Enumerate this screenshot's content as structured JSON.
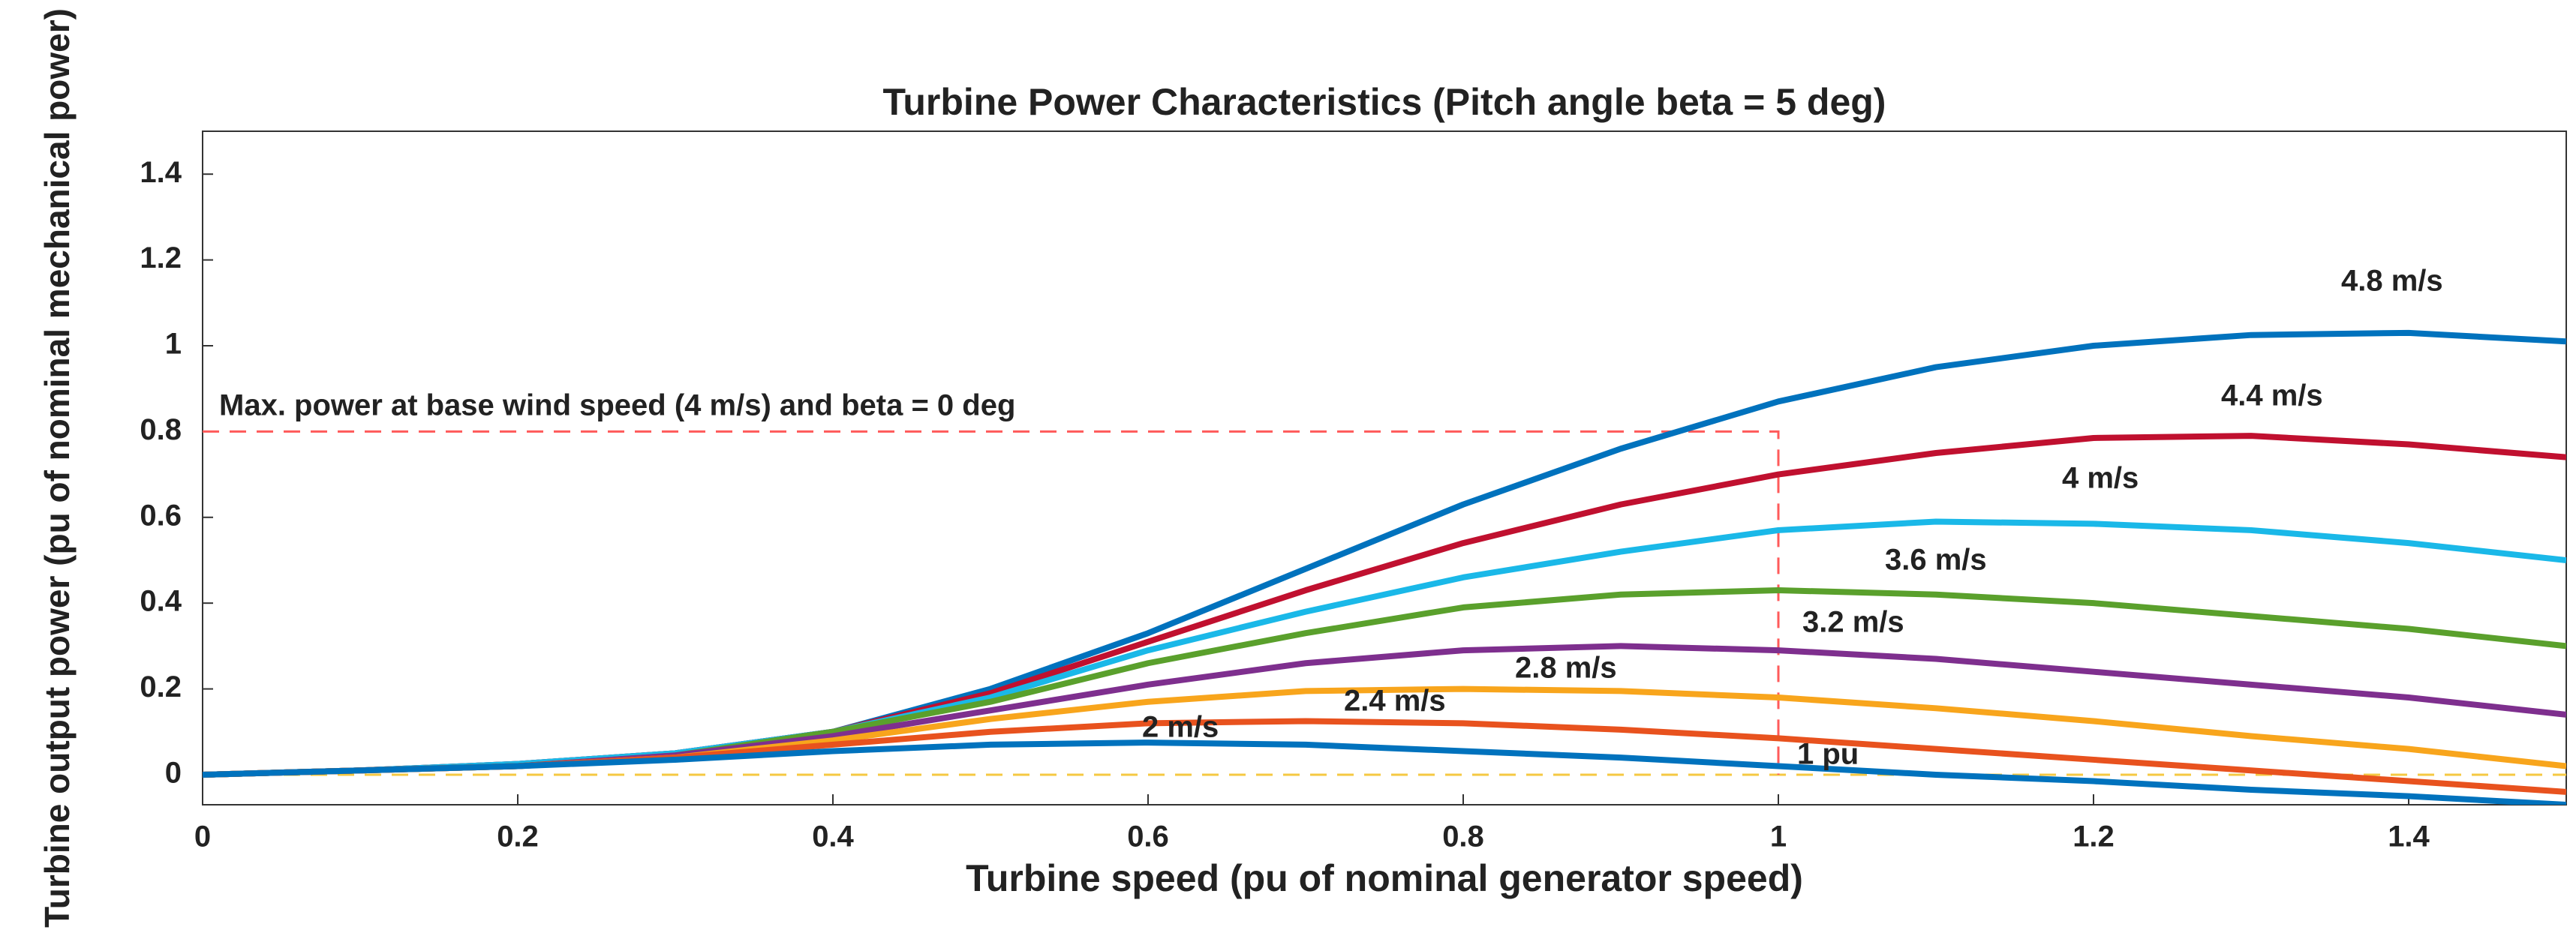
{
  "chart_data": {
    "type": "line",
    "title": "Turbine Power Characteristics (Pitch angle beta = 5 deg)",
    "x_label": "Turbine speed (pu of nominal generator speed)",
    "y_label": "Turbine output power (pu of nominal mechanical power)",
    "x": [
      0,
      0.1,
      0.2,
      0.3,
      0.4,
      0.5,
      0.6,
      0.7,
      0.8,
      0.9,
      1.0,
      1.1,
      1.2,
      1.3,
      1.4,
      1.5
    ],
    "series": [
      {
        "name": "4.8 m/s",
        "color": "#0072bd",
        "values": [
          0,
          0.01,
          0.025,
          0.05,
          0.1,
          0.2,
          0.33,
          0.48,
          0.63,
          0.76,
          0.87,
          0.95,
          1.0,
          1.025,
          1.03,
          1.01
        ]
      },
      {
        "name": "4.4 m/s",
        "color": "#c0102f",
        "values": [
          0,
          0.01,
          0.025,
          0.05,
          0.1,
          0.19,
          0.31,
          0.43,
          0.54,
          0.63,
          0.7,
          0.75,
          0.785,
          0.79,
          0.77,
          0.74
        ]
      },
      {
        "name": "4 m/s",
        "color": "#1ab8e8",
        "values": [
          0,
          0.01,
          0.025,
          0.05,
          0.1,
          0.18,
          0.29,
          0.38,
          0.46,
          0.52,
          0.57,
          0.59,
          0.585,
          0.57,
          0.54,
          0.5
        ]
      },
      {
        "name": "3.6 m/s",
        "color": "#5aa02c",
        "values": [
          0,
          0.01,
          0.02,
          0.045,
          0.1,
          0.17,
          0.26,
          0.33,
          0.39,
          0.42,
          0.43,
          0.42,
          0.4,
          0.37,
          0.34,
          0.3
        ]
      },
      {
        "name": "3.2 m/s",
        "color": "#7e2f8e",
        "values": [
          0,
          0.01,
          0.02,
          0.045,
          0.09,
          0.15,
          0.21,
          0.26,
          0.29,
          0.3,
          0.29,
          0.27,
          0.24,
          0.21,
          0.18,
          0.14
        ]
      },
      {
        "name": "2.8 m/s",
        "color": "#f8a51c",
        "values": [
          0,
          0.01,
          0.02,
          0.04,
          0.08,
          0.13,
          0.17,
          0.195,
          0.2,
          0.195,
          0.18,
          0.155,
          0.125,
          0.09,
          0.06,
          0.02
        ]
      },
      {
        "name": "2.4 m/s",
        "color": "#e8521e",
        "values": [
          0,
          0.01,
          0.02,
          0.04,
          0.07,
          0.1,
          0.12,
          0.125,
          0.12,
          0.105,
          0.085,
          0.06,
          0.035,
          0.01,
          -0.015,
          -0.04
        ]
      },
      {
        "name": "2 m/s",
        "color": "#0072bd",
        "values": [
          0,
          0.01,
          0.02,
          0.035,
          0.055,
          0.07,
          0.075,
          0.07,
          0.055,
          0.04,
          0.02,
          0.0,
          -0.015,
          -0.035,
          -0.05,
          -0.07
        ]
      }
    ],
    "base_power": 0.8,
    "base_speed": 1,
    "annotations": [
      "Max. power at base wind speed (4 m/s) and beta = 0 deg",
      "1 pu"
    ],
    "xlim": [
      0,
      1.5
    ],
    "ylim": [
      -0.07,
      1.5
    ],
    "xticks": [
      0,
      0.2,
      0.4,
      0.6,
      0.8,
      1,
      1.2,
      1.4
    ],
    "yticks": [
      0,
      0.2,
      0.4,
      0.6,
      0.8,
      1,
      1.2,
      1.4
    ]
  }
}
